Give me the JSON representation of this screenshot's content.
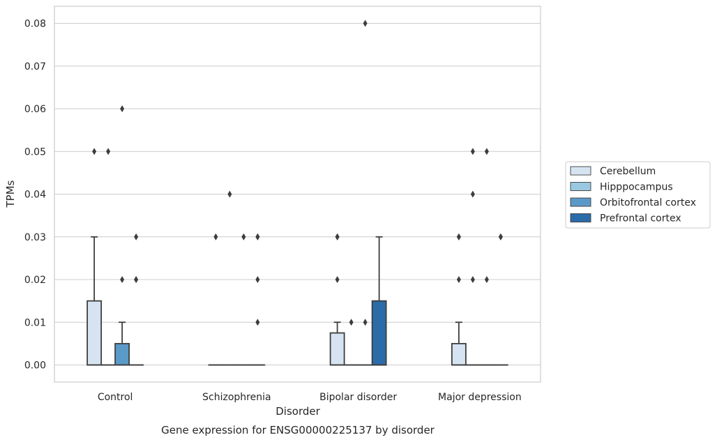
{
  "chart_data": {
    "type": "box",
    "caption": "Gene expression for ENSG00000225137 by disorder",
    "xlabel": "Disorder",
    "ylabel": "TPMs",
    "ylim": [
      -0.004,
      0.084
    ],
    "yticks": [
      0.0,
      0.01,
      0.02,
      0.03,
      0.04,
      0.05,
      0.06,
      0.07,
      0.08
    ],
    "ytick_labels": [
      "0.00",
      "0.01",
      "0.02",
      "0.03",
      "0.04",
      "0.05",
      "0.06",
      "0.07",
      "0.08"
    ],
    "grid": true,
    "legend_position": "right",
    "categories": [
      "Control",
      "Schizophrenia",
      "Bipolar disorder",
      "Major depression"
    ],
    "series": [
      {
        "name": "Cerebellum",
        "color": "#d6e4f2",
        "boxes": [
          {
            "q1": 0.0,
            "median": 0.0,
            "q3": 0.015,
            "whisker_low": 0.0,
            "whisker_high": 0.03,
            "outliers": [
              0.05
            ]
          },
          {
            "q1": 0.0,
            "median": 0.0,
            "q3": 0.0,
            "whisker_low": 0.0,
            "whisker_high": 0.0,
            "outliers": [
              0.03
            ]
          },
          {
            "q1": 0.0,
            "median": 0.0,
            "q3": 0.0075,
            "whisker_low": 0.0,
            "whisker_high": 0.01,
            "outliers": [
              0.02,
              0.03,
              0.03
            ]
          },
          {
            "q1": 0.0,
            "median": 0.0,
            "q3": 0.005,
            "whisker_low": 0.0,
            "whisker_high": 0.01,
            "outliers": [
              0.02,
              0.03,
              0.03
            ]
          }
        ]
      },
      {
        "name": "Hipppocampus",
        "color": "#9ac8e0",
        "boxes": [
          {
            "q1": 0.0,
            "median": 0.0,
            "q3": 0.0,
            "whisker_low": 0.0,
            "whisker_high": 0.0,
            "outliers": [
              0.05
            ]
          },
          {
            "q1": 0.0,
            "median": 0.0,
            "q3": 0.0,
            "whisker_low": 0.0,
            "whisker_high": 0.0,
            "outliers": [
              0.04
            ]
          },
          {
            "q1": 0.0,
            "median": 0.0,
            "q3": 0.0,
            "whisker_low": 0.0,
            "whisker_high": 0.0,
            "outliers": [
              0.01
            ]
          },
          {
            "q1": 0.0,
            "median": 0.0,
            "q3": 0.0,
            "whisker_low": 0.0,
            "whisker_high": 0.0,
            "outliers": [
              0.02,
              0.04,
              0.05
            ]
          }
        ]
      },
      {
        "name": "Orbitofrontal cortex",
        "color": "#5a9ac8",
        "boxes": [
          {
            "q1": 0.0,
            "median": 0.0,
            "q3": 0.005,
            "whisker_low": 0.0,
            "whisker_high": 0.01,
            "outliers": [
              0.02,
              0.06
            ]
          },
          {
            "q1": 0.0,
            "median": 0.0,
            "q3": 0.0,
            "whisker_low": 0.0,
            "whisker_high": 0.0,
            "outliers": [
              0.03
            ]
          },
          {
            "q1": 0.0,
            "median": 0.0,
            "q3": 0.0,
            "whisker_low": 0.0,
            "whisker_high": 0.0,
            "outliers": [
              0.01,
              0.08
            ]
          },
          {
            "q1": 0.0,
            "median": 0.0,
            "q3": 0.0,
            "whisker_low": 0.0,
            "whisker_high": 0.0,
            "outliers": [
              0.02,
              0.05
            ]
          }
        ]
      },
      {
        "name": "Prefrontal cortex",
        "color": "#2b6ba8",
        "boxes": [
          {
            "q1": 0.0,
            "median": 0.0,
            "q3": 0.0,
            "whisker_low": 0.0,
            "whisker_high": 0.0,
            "outliers": [
              0.02,
              0.02,
              0.03
            ]
          },
          {
            "q1": 0.0,
            "median": 0.0,
            "q3": 0.0,
            "whisker_low": 0.0,
            "whisker_high": 0.0,
            "outliers": [
              0.01,
              0.02,
              0.03,
              0.03
            ]
          },
          {
            "q1": 0.0,
            "median": 0.0,
            "q3": 0.015,
            "whisker_low": 0.0,
            "whisker_high": 0.03,
            "outliers": []
          },
          {
            "q1": 0.0,
            "median": 0.0,
            "q3": 0.0,
            "whisker_low": 0.0,
            "whisker_high": 0.0,
            "outliers": [
              0.03,
              0.03
            ]
          }
        ]
      }
    ]
  }
}
